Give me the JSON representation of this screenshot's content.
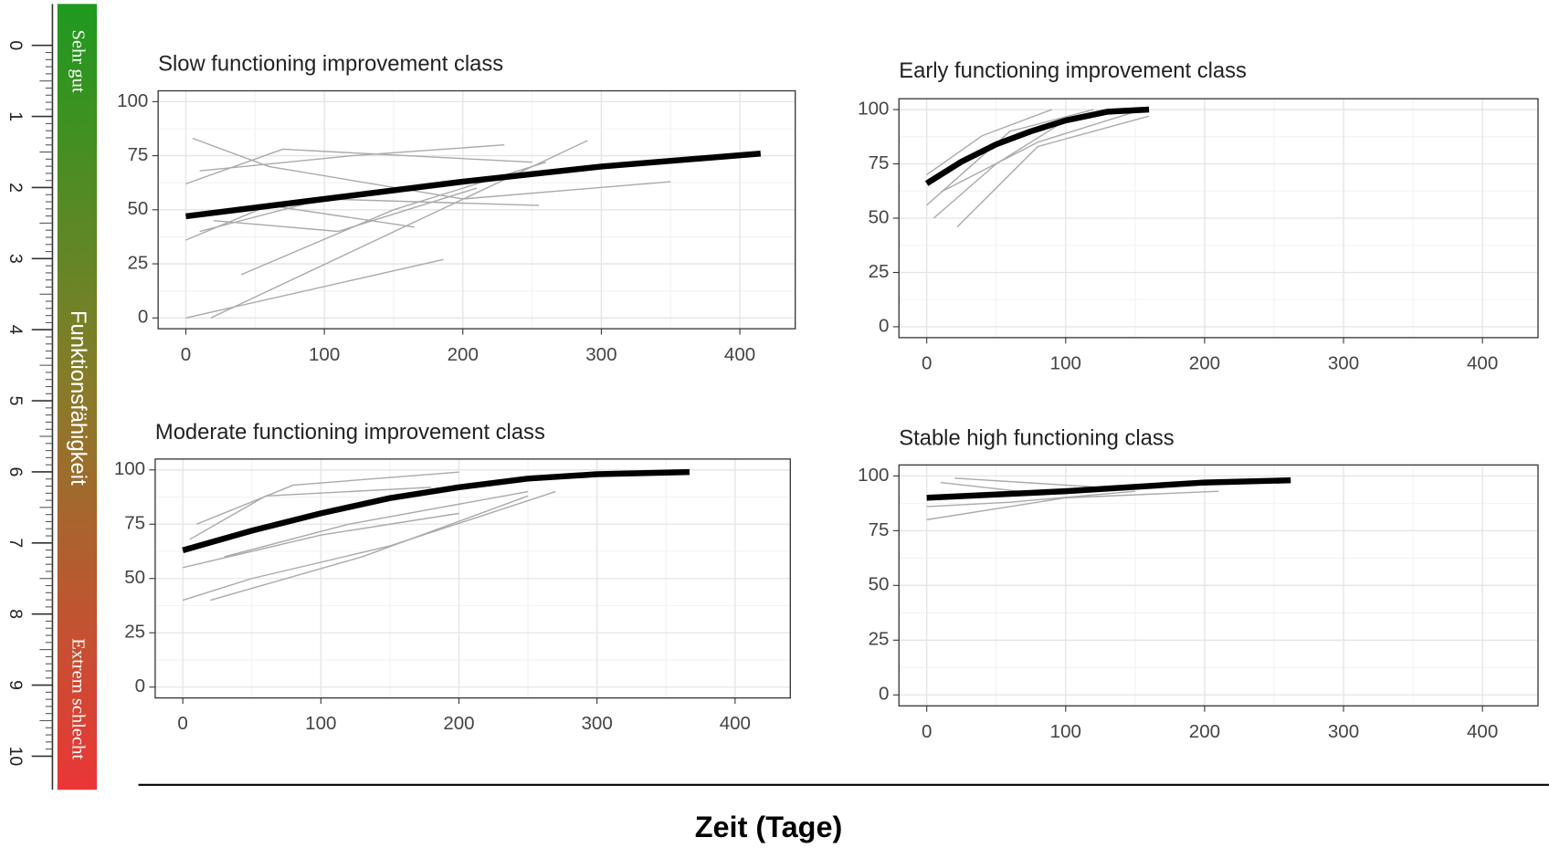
{
  "chart_data": [
    {
      "type": "line",
      "title": "Slow functioning improvement class",
      "xlim": [
        -20,
        440
      ],
      "ylim": [
        -5,
        105
      ],
      "xticks": [
        0,
        100,
        200,
        300,
        400
      ],
      "yticks": [
        0,
        25,
        50,
        75,
        100
      ],
      "grid": true,
      "series": [
        {
          "color": "#aaaaaa",
          "x": [
            0,
            186
          ],
          "values": [
            0,
            27
          ]
        },
        {
          "color": "#aaaaaa",
          "x": [
            18,
            290
          ],
          "values": [
            0,
            82
          ]
        },
        {
          "color": "#aaaaaa",
          "x": [
            5,
            60,
            200,
            350
          ],
          "values": [
            83,
            70,
            55,
            63
          ]
        },
        {
          "color": "#aaaaaa",
          "x": [
            0,
            70,
            250
          ],
          "values": [
            62,
            78,
            72
          ]
        },
        {
          "color": "#aaaaaa",
          "x": [
            10,
            100,
            255
          ],
          "values": [
            40,
            55,
            52
          ]
        },
        {
          "color": "#aaaaaa",
          "x": [
            0,
            60,
            165
          ],
          "values": [
            36,
            52,
            42
          ]
        },
        {
          "color": "#aaaaaa",
          "x": [
            40,
            150,
            260
          ],
          "values": [
            20,
            50,
            72
          ]
        },
        {
          "color": "#aaaaaa",
          "x": [
            10,
            120,
            230
          ],
          "values": [
            68,
            75,
            80
          ]
        },
        {
          "color": "#aaaaaa",
          "x": [
            20,
            110,
            210
          ],
          "values": [
            45,
            40,
            60
          ]
        },
        {
          "color": "#000000",
          "x": [
            0,
            100,
            200,
            300,
            415
          ],
          "values": [
            47,
            55,
            63,
            70,
            76
          ]
        }
      ]
    },
    {
      "type": "line",
      "title": "Early functioning improvement class",
      "xlim": [
        -20,
        440
      ],
      "ylim": [
        -5,
        105
      ],
      "xticks": [
        0,
        100,
        200,
        300,
        400
      ],
      "yticks": [
        0,
        25,
        50,
        75,
        100
      ],
      "grid": true,
      "series": [
        {
          "color": "#aaaaaa",
          "x": [
            22,
            80,
            160
          ],
          "values": [
            46,
            83,
            97
          ]
        },
        {
          "color": "#aaaaaa",
          "x": [
            5,
            50,
            100
          ],
          "values": [
            50,
            75,
            95
          ]
        },
        {
          "color": "#aaaaaa",
          "x": [
            0,
            60,
            120
          ],
          "values": [
            56,
            90,
            100
          ]
        },
        {
          "color": "#aaaaaa",
          "x": [
            0,
            40,
            90
          ],
          "values": [
            70,
            88,
            100
          ]
        },
        {
          "color": "#aaaaaa",
          "x": [
            10,
            80,
            150
          ],
          "values": [
            62,
            85,
            99
          ]
        },
        {
          "color": "#000000",
          "x": [
            0,
            25,
            50,
            75,
            100,
            130,
            160
          ],
          "values": [
            66,
            76,
            84,
            90,
            95,
            99,
            100
          ]
        }
      ]
    },
    {
      "type": "line",
      "title": "Moderate functioning improvement class",
      "xlim": [
        -20,
        440
      ],
      "ylim": [
        -5,
        105
      ],
      "xticks": [
        0,
        100,
        200,
        300,
        400
      ],
      "yticks": [
        0,
        25,
        50,
        75,
        100
      ],
      "grid": true,
      "series": [
        {
          "color": "#aaaaaa",
          "x": [
            0,
            50,
            150,
            270
          ],
          "values": [
            40,
            50,
            65,
            90
          ]
        },
        {
          "color": "#aaaaaa",
          "x": [
            20,
            130,
            250
          ],
          "values": [
            40,
            60,
            88
          ]
        },
        {
          "color": "#aaaaaa",
          "x": [
            10,
            80,
            200
          ],
          "values": [
            75,
            93,
            99
          ]
        },
        {
          "color": "#aaaaaa",
          "x": [
            0,
            100,
            200
          ],
          "values": [
            55,
            70,
            80
          ]
        },
        {
          "color": "#aaaaaa",
          "x": [
            30,
            120,
            250
          ],
          "values": [
            60,
            75,
            90
          ]
        },
        {
          "color": "#aaaaaa",
          "x": [
            5,
            60,
            180
          ],
          "values": [
            68,
            88,
            92
          ]
        },
        {
          "color": "#000000",
          "x": [
            0,
            50,
            100,
            150,
            200,
            250,
            300,
            367
          ],
          "values": [
            63,
            72,
            80,
            87,
            92,
            96,
            98,
            99
          ]
        }
      ]
    },
    {
      "type": "line",
      "title": "Stable high functioning class",
      "xlim": [
        -20,
        440
      ],
      "ylim": [
        -5,
        105
      ],
      "xticks": [
        0,
        100,
        200,
        300,
        400
      ],
      "yticks": [
        0,
        25,
        50,
        75,
        100
      ],
      "grid": true,
      "series": [
        {
          "color": "#aaaaaa",
          "x": [
            0,
            100,
            210
          ],
          "values": [
            80,
            90,
            93
          ]
        },
        {
          "color": "#aaaaaa",
          "x": [
            10,
            80,
            200
          ],
          "values": [
            97,
            92,
            96
          ]
        },
        {
          "color": "#aaaaaa",
          "x": [
            20,
            120
          ],
          "values": [
            99,
            95
          ]
        },
        {
          "color": "#aaaaaa",
          "x": [
            0,
            60,
            150
          ],
          "values": [
            86,
            88,
            93
          ]
        },
        {
          "color": "#000000",
          "x": [
            0,
            100,
            200,
            262
          ],
          "values": [
            90,
            93,
            97,
            98
          ]
        }
      ]
    }
  ],
  "ruler": {
    "ticks": [
      0,
      1,
      2,
      3,
      4,
      5,
      6,
      7,
      8,
      9,
      10
    ],
    "top_label": "Sehr gut",
    "middle_label": "Funktionsfähigkeit",
    "bottom_label": "Extrem schlecht"
  },
  "common_xlabel": "Zeit (Tage)"
}
